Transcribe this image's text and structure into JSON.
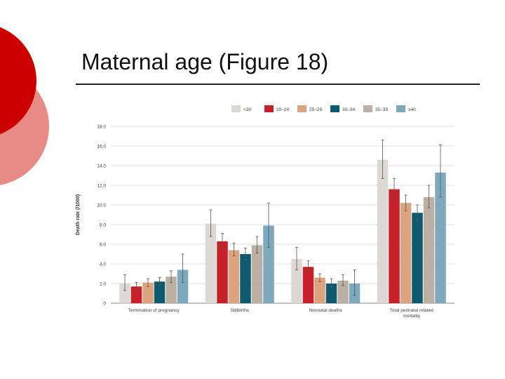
{
  "slide": {
    "title": "Maternal age (Figure 18)"
  },
  "colors": {
    "accent_dark": "#cc0000",
    "accent_light": "#e88a86",
    "rule": "#222222"
  },
  "chart_data": {
    "type": "bar",
    "title": "",
    "xlabel": "",
    "ylabel": "Death rate (/1000)",
    "ylim": [
      0,
      18
    ],
    "yticks": [
      "0",
      "2.0",
      "4.0",
      "6.0",
      "8.0",
      "10.0",
      "12.0",
      "14.0",
      "16.0",
      "18.0"
    ],
    "grid": true,
    "legend_position": "top",
    "error_bars": true,
    "categories": [
      "Termination of pregnancy",
      "Stillbirths",
      "Neonatal deaths",
      "Total perinatal related mortality"
    ],
    "series": [
      {
        "name": "<20",
        "color": "#dcd8d3",
        "values": [
          2.0,
          8.1,
          4.5,
          14.6
        ],
        "err_low": [
          1.3,
          6.8,
          3.4,
          12.7
        ],
        "err_high": [
          2.9,
          9.5,
          5.7,
          16.6
        ]
      },
      {
        "name": "20–24",
        "color": "#c8202b",
        "values": [
          1.7,
          6.3,
          3.7,
          11.6
        ],
        "err_low": [
          1.3,
          5.5,
          3.2,
          10.5
        ],
        "err_high": [
          2.1,
          7.1,
          4.3,
          12.7
        ]
      },
      {
        "name": "25–29",
        "color": "#dca47e",
        "values": [
          2.1,
          5.4,
          2.6,
          10.2
        ],
        "err_low": [
          1.7,
          4.8,
          2.2,
          9.4
        ],
        "err_high": [
          2.5,
          6.1,
          3.0,
          11.0
        ]
      },
      {
        "name": "30–34",
        "color": "#0d5a6e",
        "values": [
          2.2,
          5.0,
          2.0,
          9.2
        ],
        "err_low": [
          1.8,
          4.4,
          1.6,
          8.4
        ],
        "err_high": [
          2.6,
          5.6,
          2.5,
          10.0
        ]
      },
      {
        "name": "35–39",
        "color": "#bcb0a3",
        "values": [
          2.7,
          5.9,
          2.3,
          10.8
        ],
        "err_low": [
          2.1,
          5.1,
          1.8,
          9.7
        ],
        "err_high": [
          3.3,
          6.8,
          2.9,
          12.0
        ]
      },
      {
        "name": "≥40",
        "color": "#7ea9bd",
        "values": [
          3.4,
          7.9,
          2.0,
          13.3
        ],
        "err_low": [
          2.1,
          5.7,
          0.8,
          10.8
        ],
        "err_high": [
          5.0,
          10.2,
          3.4,
          16.1
        ]
      }
    ],
    "category_labels": [
      [
        "Termination of pregnancy"
      ],
      [
        "Stillbirths"
      ],
      [
        "Neonatal deaths"
      ],
      [
        "Total perinatal related",
        "mortality"
      ]
    ]
  }
}
